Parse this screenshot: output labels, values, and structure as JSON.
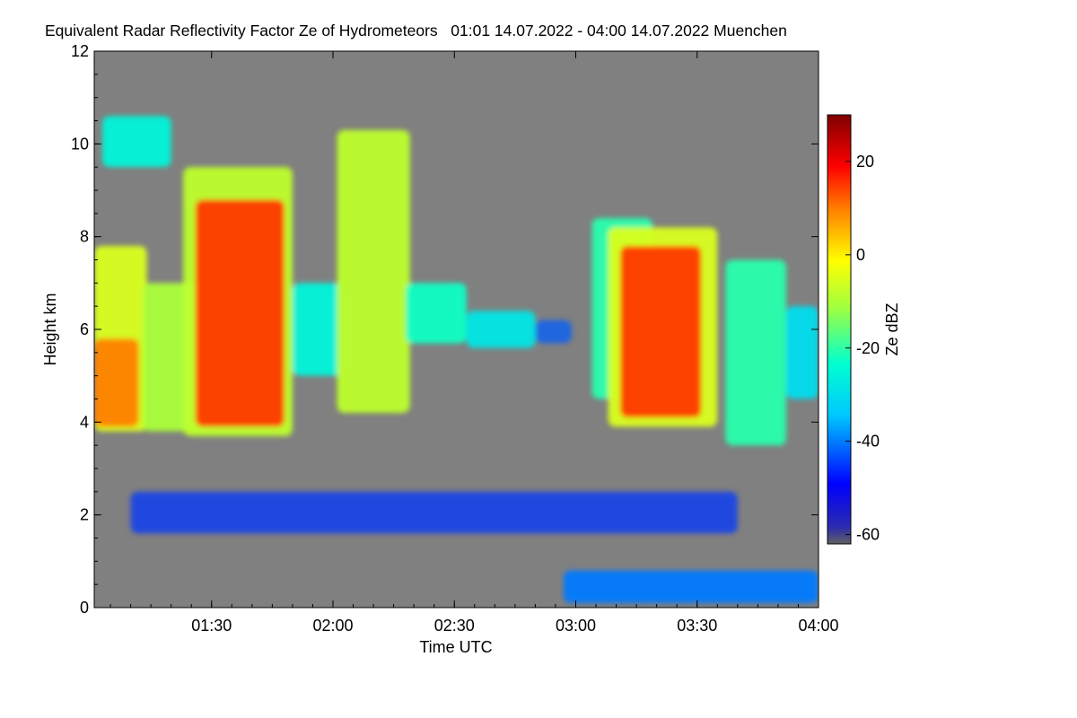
{
  "chart_data": {
    "type": "heatmap",
    "title": "Equivalent Radar Reflectivity Factor Ze of Hydrometeors   01:01 14.07.2022 - 04:00 14.07.2022 Muenchen",
    "xlabel": "Time UTC",
    "ylabel": "Height km",
    "x_range": [
      "01:01",
      "04:00"
    ],
    "x_ticks": [
      "01:30",
      "02:00",
      "02:30",
      "03:00",
      "03:30",
      "04:00"
    ],
    "ylim": [
      0,
      12
    ],
    "y_ticks": [
      "0",
      "2",
      "4",
      "6",
      "8",
      "10",
      "12"
    ],
    "colorbar": {
      "label": "Ze dBZ",
      "range": [
        -62,
        30
      ],
      "ticks": [
        "20",
        "0",
        "-20",
        "-40",
        "-60"
      ]
    },
    "background_color": "#808080",
    "echo_regions": [
      {
        "t_start": "01:01",
        "t_end": "01:14",
        "h_base": 3.8,
        "h_top": 7.8,
        "dbz": -5
      },
      {
        "t_start": "01:01",
        "t_end": "01:12",
        "h_base": 3.9,
        "h_top": 5.8,
        "dbz": 10
      },
      {
        "t_start": "01:03",
        "t_end": "01:20",
        "h_base": 9.5,
        "h_top": 10.6,
        "dbz": -25
      },
      {
        "t_start": "01:13",
        "t_end": "01:29",
        "h_base": 3.8,
        "h_top": 7.0,
        "dbz": -10
      },
      {
        "t_start": "01:23",
        "t_end": "01:50",
        "h_base": 3.7,
        "h_top": 9.5,
        "dbz": -8
      },
      {
        "t_start": "01:26",
        "t_end": "01:48",
        "h_base": 3.9,
        "h_top": 8.8,
        "dbz": 15
      },
      {
        "t_start": "01:50",
        "t_end": "02:02",
        "h_base": 5.0,
        "h_top": 7.0,
        "dbz": -25
      },
      {
        "t_start": "02:01",
        "t_end": "02:19",
        "h_base": 4.2,
        "h_top": 10.3,
        "dbz": -8
      },
      {
        "t_start": "02:18",
        "t_end": "02:33",
        "h_base": 5.7,
        "h_top": 7.0,
        "dbz": -22
      },
      {
        "t_start": "02:33",
        "t_end": "02:50",
        "h_base": 5.6,
        "h_top": 6.4,
        "dbz": -28
      },
      {
        "t_start": "02:50",
        "t_end": "02:59",
        "h_base": 5.7,
        "h_top": 6.2,
        "dbz": -42
      },
      {
        "t_start": "03:04",
        "t_end": "03:19",
        "h_base": 4.5,
        "h_top": 8.4,
        "dbz": -20
      },
      {
        "t_start": "03:08",
        "t_end": "03:35",
        "h_base": 3.9,
        "h_top": 8.2,
        "dbz": -5
      },
      {
        "t_start": "03:11",
        "t_end": "03:31",
        "h_base": 4.1,
        "h_top": 7.8,
        "dbz": 15
      },
      {
        "t_start": "03:37",
        "t_end": "03:52",
        "h_base": 3.5,
        "h_top": 7.5,
        "dbz": -20
      },
      {
        "t_start": "03:52",
        "t_end": "04:00",
        "h_base": 4.5,
        "h_top": 6.5,
        "dbz": -30
      },
      {
        "t_start": "01:10",
        "t_end": "03:40",
        "h_base": 1.6,
        "h_top": 2.5,
        "dbz": -45
      },
      {
        "t_start": "02:57",
        "t_end": "04:00",
        "h_base": 0.1,
        "h_top": 0.8,
        "dbz": -40
      }
    ]
  }
}
